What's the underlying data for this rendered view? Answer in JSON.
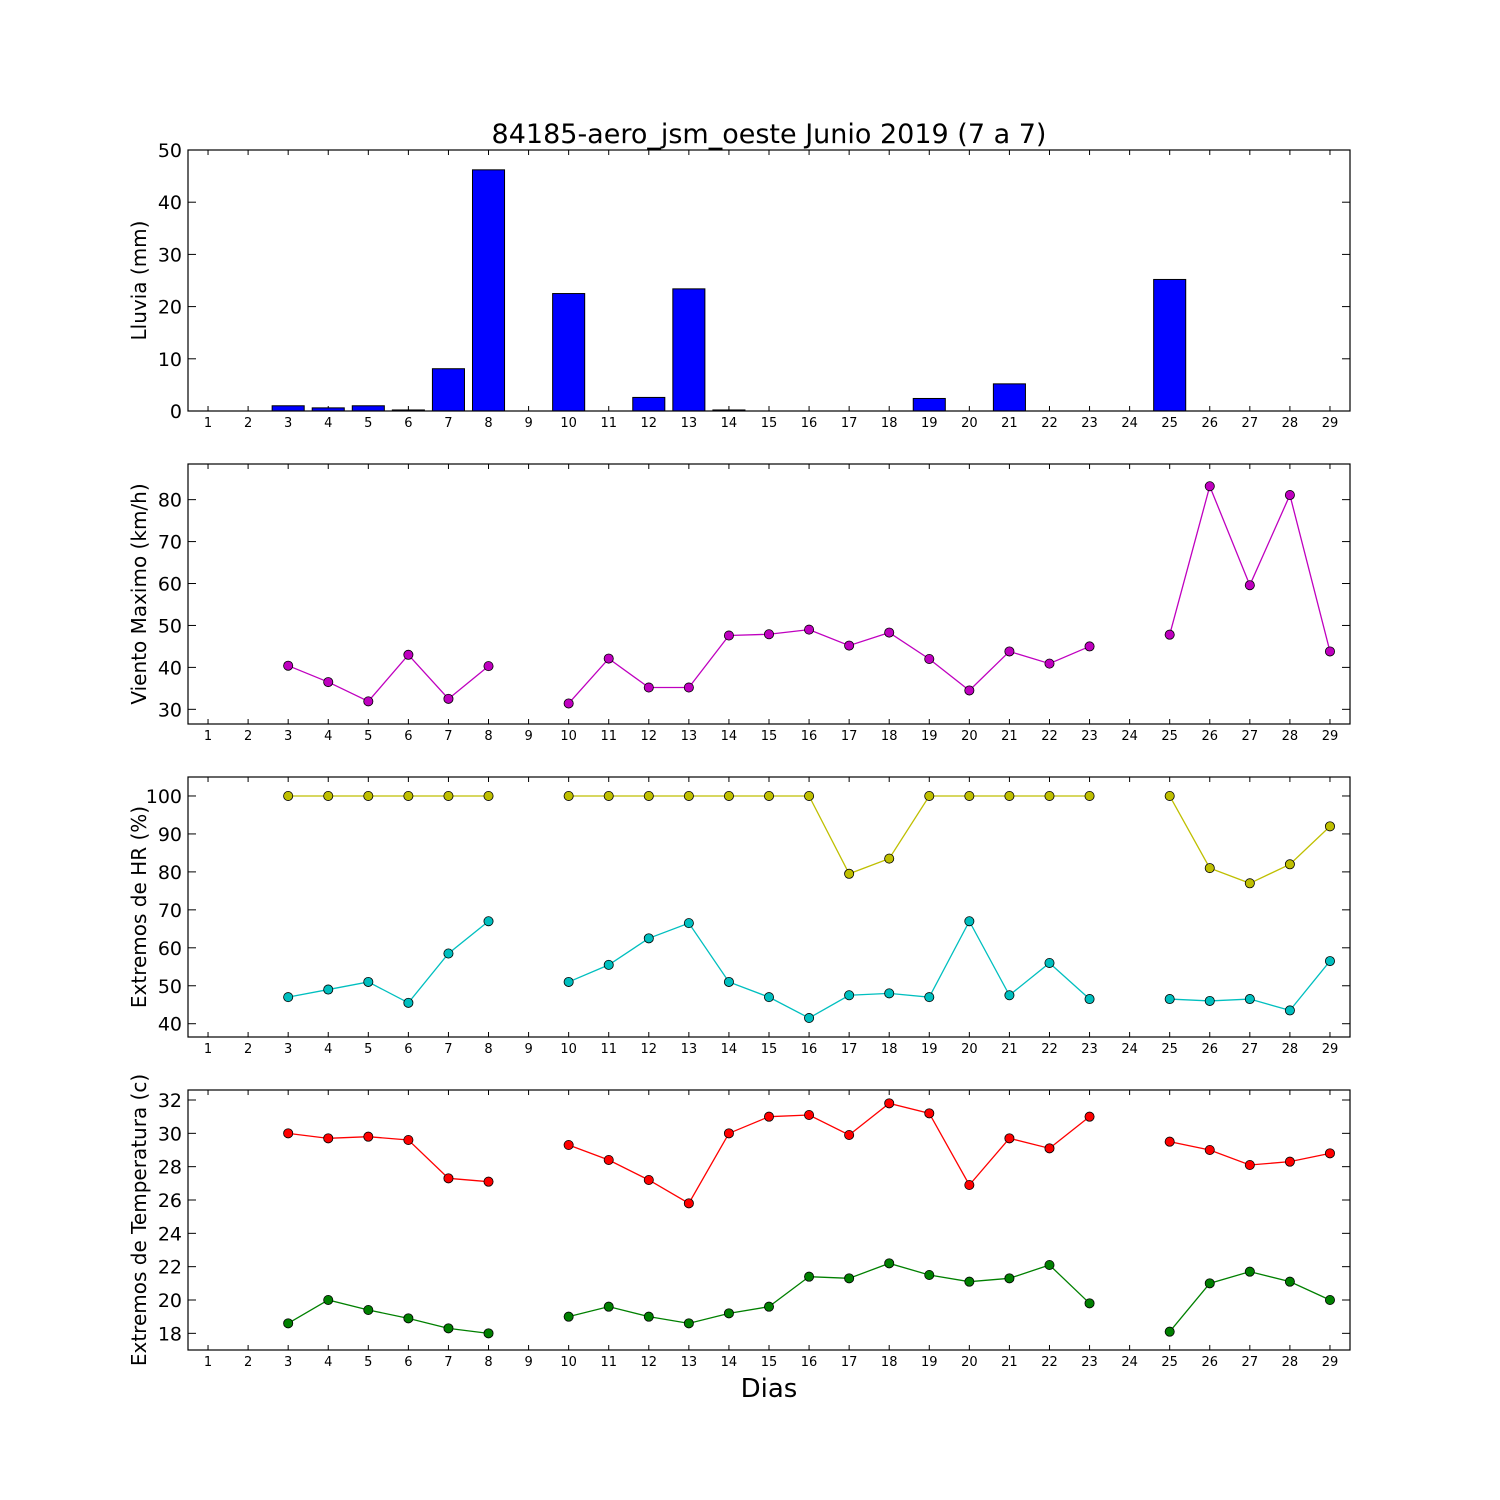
{
  "title": "84185-aero_jsm_oeste Junio 2019  (7 a 7)",
  "xlabel": "Dias",
  "chart_data": [
    {
      "type": "bar",
      "ylabel": "Lluvia (mm)",
      "x": [
        1,
        2,
        3,
        4,
        5,
        6,
        7,
        8,
        9,
        10,
        11,
        12,
        13,
        14,
        15,
        16,
        17,
        18,
        19,
        20,
        21,
        22,
        23,
        24,
        25,
        26,
        27,
        28,
        29
      ],
      "values": [
        0,
        0,
        1.0,
        0.6,
        1.0,
        0.2,
        8.1,
        46.2,
        0,
        22.5,
        0,
        2.6,
        23.4,
        0.2,
        0,
        0,
        0,
        0,
        2.4,
        0,
        5.2,
        0,
        0,
        0,
        25.2,
        0,
        0,
        0,
        0
      ],
      "ylim": [
        0,
        50
      ],
      "yticks": [
        0,
        10,
        20,
        30,
        40,
        50
      ],
      "color": "#0000ff"
    },
    {
      "type": "line",
      "ylabel": "Viento Maximo (km/h)",
      "x": [
        1,
        2,
        3,
        4,
        5,
        6,
        7,
        8,
        9,
        10,
        11,
        12,
        13,
        14,
        15,
        16,
        17,
        18,
        19,
        20,
        21,
        22,
        23,
        24,
        25,
        26,
        27,
        28,
        29
      ],
      "series": [
        {
          "color": "#bf00bf",
          "values": [
            null,
            null,
            40.4,
            36.5,
            31.9,
            43.0,
            32.5,
            40.3,
            null,
            31.4,
            42.1,
            35.2,
            35.2,
            47.6,
            47.9,
            49.0,
            45.2,
            48.3,
            42.0,
            34.5,
            43.8,
            40.9,
            45.0,
            null,
            47.8,
            83.2,
            59.6,
            81.1,
            43.8
          ]
        }
      ],
      "ylim": [
        26.5,
        88.5
      ],
      "yticks": [
        30,
        40,
        50,
        60,
        70,
        80
      ]
    },
    {
      "type": "line",
      "ylabel": "Extremos de HR (%)",
      "x": [
        1,
        2,
        3,
        4,
        5,
        6,
        7,
        8,
        9,
        10,
        11,
        12,
        13,
        14,
        15,
        16,
        17,
        18,
        19,
        20,
        21,
        22,
        23,
        24,
        25,
        26,
        27,
        28,
        29
      ],
      "series": [
        {
          "color": "#bfbf00",
          "values": [
            null,
            null,
            100,
            100,
            100,
            100,
            100,
            100,
            null,
            100,
            100,
            100,
            100,
            100,
            100,
            100,
            79.5,
            83.5,
            100,
            100,
            100,
            100,
            100,
            null,
            100,
            81,
            77,
            82,
            92
          ]
        },
        {
          "color": "#00bfbf",
          "values": [
            null,
            null,
            47,
            49,
            51,
            45.5,
            58.5,
            67,
            null,
            51,
            55.5,
            62.5,
            66.5,
            51,
            47,
            41.5,
            47.5,
            48,
            47,
            67,
            47.5,
            56,
            46.5,
            null,
            46.5,
            46,
            46.5,
            43.5,
            56.5
          ]
        }
      ],
      "ylim": [
        36.5,
        105
      ],
      "yticks": [
        40,
        50,
        60,
        70,
        80,
        90,
        100
      ]
    },
    {
      "type": "line",
      "ylabel": "Extremos de Temperatura (c)",
      "x": [
        1,
        2,
        3,
        4,
        5,
        6,
        7,
        8,
        9,
        10,
        11,
        12,
        13,
        14,
        15,
        16,
        17,
        18,
        19,
        20,
        21,
        22,
        23,
        24,
        25,
        26,
        27,
        28,
        29
      ],
      "series": [
        {
          "color": "#ff0000",
          "values": [
            null,
            null,
            30.0,
            29.7,
            29.8,
            29.6,
            27.3,
            27.1,
            null,
            29.3,
            28.4,
            27.2,
            25.8,
            30.0,
            31.0,
            31.1,
            29.9,
            31.8,
            31.2,
            26.9,
            29.7,
            29.1,
            31.0,
            null,
            29.5,
            29.0,
            28.1,
            28.3,
            28.8
          ]
        },
        {
          "color": "#008000",
          "values": [
            null,
            null,
            18.6,
            20.0,
            19.4,
            18.9,
            18.3,
            18.0,
            null,
            19.0,
            19.6,
            19.0,
            18.6,
            19.2,
            19.6,
            21.4,
            21.3,
            22.2,
            21.5,
            21.1,
            21.3,
            22.1,
            19.8,
            null,
            18.1,
            21.0,
            21.7,
            21.1,
            20.0
          ]
        }
      ],
      "ylim": [
        17,
        32.6
      ],
      "yticks": [
        18,
        20,
        22,
        24,
        26,
        28,
        30,
        32
      ]
    }
  ]
}
